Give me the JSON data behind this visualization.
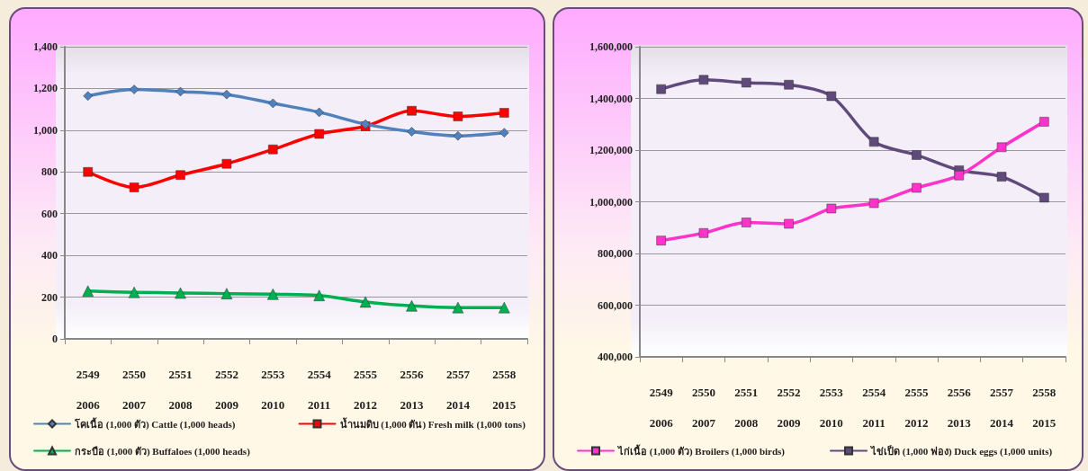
{
  "chart_data": [
    {
      "type": "line",
      "categories": [
        "2549\n2006",
        "2550\n2007",
        "2551\n2008",
        "2552\n2009",
        "2553\n2010",
        "2554\n2011",
        "2555\n2012",
        "2556\n2013",
        "2557\n2014",
        "2558\n2015"
      ],
      "series": [
        {
          "name": "โคเนื้อ (1,000 ตัว) Cattle (1,000 heads)",
          "color": "#4f81bd",
          "marker": "diamond",
          "values": [
            1164,
            1195,
            1185,
            1171,
            1129,
            1086,
            1029,
            993,
            973,
            988
          ]
        },
        {
          "name": "น้ำนมดิบ (1,000 ตัน) Fresh milk (1,000 tons)",
          "color": "#ff0000",
          "marker": "square",
          "values": [
            800,
            726,
            785,
            839,
            908,
            982,
            1019,
            1093,
            1066,
            1083
          ]
        },
        {
          "name": "กระบือ (1,000 ตัว) Buffaloes (1,000 heads)",
          "color": "#00b050",
          "marker": "triangle",
          "values": [
            229,
            223,
            220,
            217,
            214,
            208,
            177,
            158,
            150,
            150
          ]
        }
      ],
      "ylim": [
        0,
        1400
      ],
      "yticks": [
        0,
        200,
        400,
        600,
        800,
        {
          "value": 1000,
          "label": "1,000"
        },
        {
          "value": 1200,
          "label": "1,200"
        },
        {
          "value": 1400,
          "label": "1,400"
        }
      ],
      "grid": "y",
      "legend": "bottom"
    },
    {
      "type": "line",
      "categories": [
        "2549\n2006",
        "2550\n2007",
        "2551\n2008",
        "2552\n2009",
        "2553\n2010",
        "2554\n2011",
        "2555\n2012",
        "2556\n2013",
        "2557\n2014",
        "2558\n2015"
      ],
      "series": [
        {
          "name": "ไก่เนื้อ (1,000 ตัว) Broilers (1,000 birds)",
          "color": "#ff33cc",
          "marker": "square",
          "values": [
            850000,
            879000,
            920000,
            915000,
            974000,
            995000,
            1054000,
            1102000,
            1211000,
            1310000
          ]
        },
        {
          "name": "ไข่เป็ด (1,000 ฟอง) Duck eggs (1,000 units)",
          "color": "#604a7b",
          "marker": "square",
          "values": [
            1436000,
            1472000,
            1461000,
            1453000,
            1409000,
            1232000,
            1181000,
            1122000,
            1097000,
            1016000
          ]
        }
      ],
      "ylim": [
        400000,
        1600000
      ],
      "yticks": [
        {
          "value": 400000,
          "label": "400,000"
        },
        {
          "value": 600000,
          "label": "600,000"
        },
        {
          "value": 800000,
          "label": "800,000"
        },
        {
          "value": 1000000,
          "label": "1,000,000"
        },
        {
          "value": 1200000,
          "label": "1,200,000"
        },
        {
          "value": 1400000,
          "label": "1,400,000"
        },
        {
          "value": 1600000,
          "label": "1,600,000"
        }
      ],
      "grid": "y",
      "legend": "bottom"
    }
  ]
}
